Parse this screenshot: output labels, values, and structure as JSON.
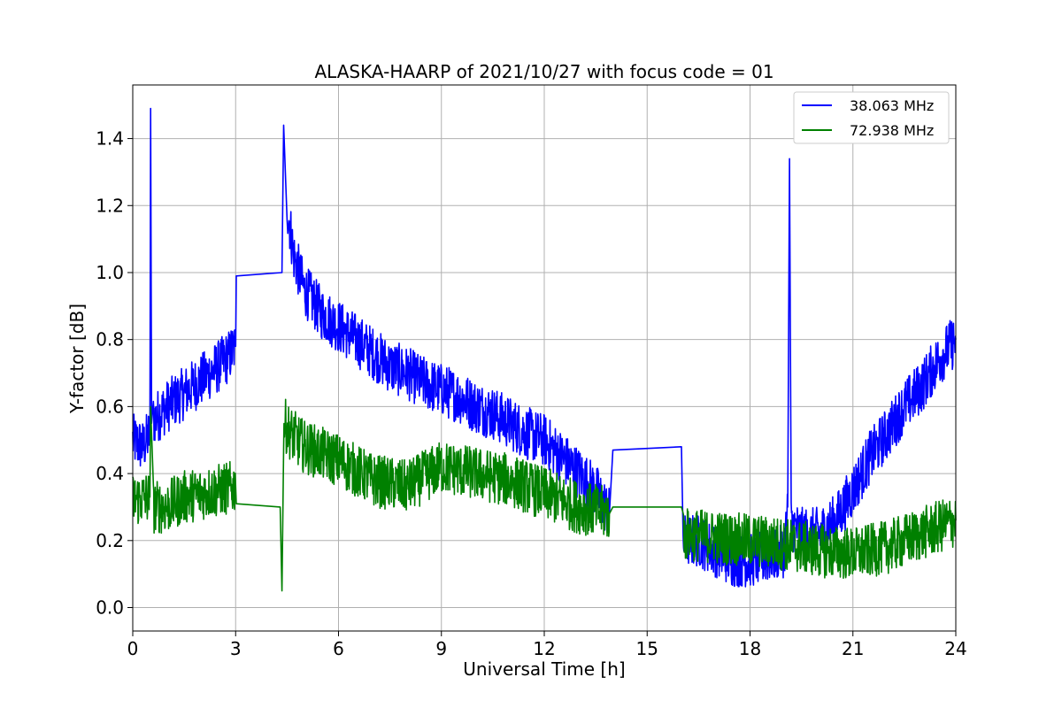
{
  "chart_data": {
    "type": "line",
    "title": "ALASKA-HAARP of 2021/10/27 with focus code = 01",
    "xlabel": "Universal Time [h]",
    "ylabel": "Y-factor [dB]",
    "xlim": [
      0,
      24
    ],
    "ylim": [
      -0.07,
      1.56
    ],
    "xticks": [
      0,
      3,
      6,
      9,
      12,
      15,
      18,
      21,
      24
    ],
    "xtick_labels": [
      "0",
      "3",
      "6",
      "9",
      "12",
      "15",
      "18",
      "21",
      "24"
    ],
    "yticks": [
      0.0,
      0.2,
      0.4,
      0.6,
      0.8,
      1.0,
      1.2,
      1.4
    ],
    "ytick_labels": [
      "0.0",
      "0.2",
      "0.4",
      "0.6",
      "0.8",
      "1.0",
      "1.2",
      "1.4"
    ],
    "grid": true,
    "legend": "top-right",
    "series": [
      {
        "name": "38.063 MHz",
        "color": "#0000ff",
        "x": [
          0,
          0.3,
          0.5,
          0.52,
          0.55,
          0.6,
          0.8,
          1.0,
          1.5,
          2.0,
          2.5,
          2.8,
          3.0,
          3.02,
          4.35,
          4.4,
          4.5,
          4.7,
          5.0,
          5.5,
          6.0,
          6.5,
          7.0,
          7.5,
          8.0,
          8.5,
          9.0,
          9.5,
          10.0,
          10.5,
          11.0,
          11.5,
          12.0,
          12.5,
          13.0,
          13.5,
          13.9,
          14.0,
          16.0,
          16.05,
          16.5,
          17.0,
          17.5,
          18.0,
          18.5,
          19.0,
          19.1,
          19.15,
          19.2,
          19.5,
          20.0,
          20.5,
          21.0,
          21.5,
          22.0,
          22.5,
          23.0,
          23.5,
          24.0
        ],
        "y": [
          0.5,
          0.48,
          0.52,
          1.49,
          0.55,
          0.56,
          0.58,
          0.6,
          0.64,
          0.68,
          0.72,
          0.75,
          0.78,
          0.99,
          1.0,
          1.44,
          1.2,
          1.05,
          0.95,
          0.88,
          0.84,
          0.8,
          0.76,
          0.72,
          0.7,
          0.67,
          0.65,
          0.63,
          0.6,
          0.58,
          0.55,
          0.52,
          0.5,
          0.45,
          0.4,
          0.35,
          0.28,
          0.47,
          0.48,
          0.2,
          0.2,
          0.17,
          0.14,
          0.14,
          0.15,
          0.17,
          0.3,
          1.34,
          0.25,
          0.22,
          0.22,
          0.26,
          0.35,
          0.45,
          0.52,
          0.6,
          0.66,
          0.74,
          0.8
        ],
        "noise": 0.08
      },
      {
        "name": "72.938 MHz",
        "color": "#008000",
        "x": [
          0,
          0.5,
          0.52,
          0.6,
          1.0,
          1.5,
          2.0,
          2.5,
          3.0,
          3.02,
          4.3,
          4.35,
          4.4,
          4.6,
          5.0,
          6.0,
          7.0,
          8.0,
          9.0,
          10.0,
          11.0,
          12.0,
          13.0,
          13.9,
          14.0,
          16.0,
          16.05,
          17.0,
          18.0,
          19.0,
          20.0,
          21.0,
          22.0,
          23.0,
          24.0
        ],
        "y": [
          0.32,
          0.33,
          0.6,
          0.3,
          0.3,
          0.33,
          0.34,
          0.35,
          0.36,
          0.31,
          0.3,
          0.05,
          0.55,
          0.52,
          0.48,
          0.44,
          0.38,
          0.36,
          0.42,
          0.4,
          0.38,
          0.34,
          0.3,
          0.28,
          0.3,
          0.3,
          0.22,
          0.21,
          0.2,
          0.19,
          0.17,
          0.16,
          0.18,
          0.22,
          0.26
        ],
        "noise": 0.08
      }
    ]
  }
}
